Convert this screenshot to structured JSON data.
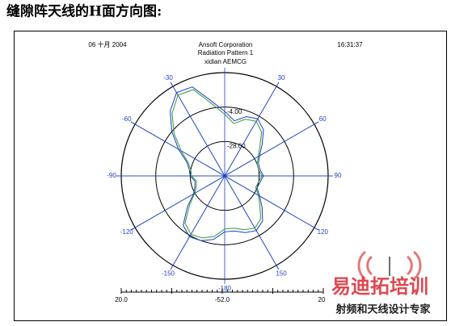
{
  "heading": "缝隙阵天线的H面方向图:",
  "chart_data": {
    "type": "polar",
    "date": "06 十月 2004",
    "title": "Ansoft Corporation",
    "subtitle": "Radiation Pattern 1",
    "author": "xidian AEMCG",
    "time": "16:31:37",
    "rlim": [
      -52,
      20
    ],
    "rticks": [
      {
        "value": -4,
        "label": "-4.00"
      },
      {
        "value": -28,
        "label": "-28.00"
      }
    ],
    "thetaticks": [
      {
        "value": -180,
        "label": "-180"
      },
      {
        "value": -150,
        "label": "-150"
      },
      {
        "value": -120,
        "label": "-120"
      },
      {
        "value": -90,
        "label": "-90"
      },
      {
        "value": -60,
        "label": "-60"
      },
      {
        "value": -30,
        "label": "-30"
      },
      {
        "value": 30,
        "label": "30"
      },
      {
        "value": 60,
        "label": "60"
      },
      {
        "value": 90,
        "label": "90"
      },
      {
        "value": 120,
        "label": "120"
      },
      {
        "value": 150,
        "label": "150"
      }
    ],
    "x": [
      -180,
      -170,
      -160,
      -150,
      -140,
      -130,
      -120,
      -110,
      -100,
      -90,
      -80,
      -70,
      -60,
      -50,
      -40,
      -30,
      -20,
      -10,
      0,
      10,
      20,
      30,
      40,
      50,
      60,
      70,
      80,
      90,
      100,
      110,
      120,
      130,
      140,
      150,
      160,
      170
    ],
    "series": [
      {
        "color": "#1f3fbf",
        "values": [
          -13,
          -7,
          -4,
          -3,
          -7,
          -18,
          -27,
          -30,
          -31,
          -28,
          -27,
          -24,
          -15,
          -4,
          7,
          15,
          14,
          1,
          -7,
          -13,
          -8,
          -6,
          -10,
          -18,
          -24,
          -27,
          -27,
          -25,
          -27,
          -28,
          -24,
          -18,
          -11,
          -8,
          -10,
          -13
        ]
      },
      {
        "color": "#2e9a3a",
        "values": [
          -15,
          -9,
          -6,
          -5,
          -9,
          -20,
          -28,
          -31,
          -32,
          -29,
          -28,
          -25,
          -17,
          -6,
          5,
          13,
          12,
          -1,
          -9,
          -15,
          -10,
          -8,
          -12,
          -20,
          -25,
          -28,
          -28,
          -26,
          -28,
          -29,
          -25,
          -20,
          -13,
          -10,
          -12,
          -15
        ]
      }
    ],
    "scale_labels": [
      "20.0",
      "-52.0",
      "20"
    ]
  },
  "watermark": {
    "brand": "易迪拓培训",
    "slogan": "射频和天线设计专家"
  }
}
